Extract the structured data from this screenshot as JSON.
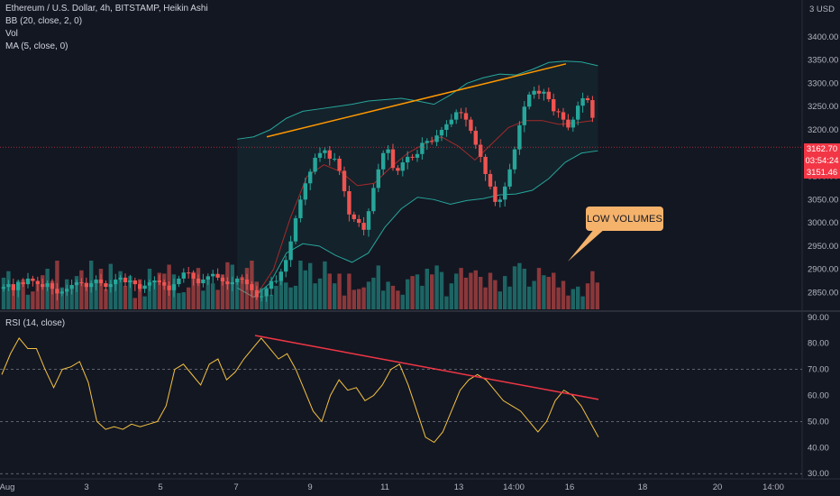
{
  "legend": {
    "main": "Ethereum / U.S. Dollar, 4h, BITSTAMP, Heikin Ashi",
    "bb": "BB (20, close, 2, 0)",
    "vol": "Vol",
    "ma": "MA (5, close, 0)",
    "rsi": "RSI (14, close)"
  },
  "currency_label": "3 USD",
  "callout_text": "LOW VOLUMES",
  "price_tags": {
    "last": "3162.70",
    "countdown": "03:54:24",
    "low": "3151.46"
  },
  "colors": {
    "bull": "#26a69a",
    "bear": "#ef5350",
    "bb": "#26a69a",
    "ma": "#a52a2a",
    "trend_upper": "#ff9800",
    "trend_rsi": "#f23645",
    "rsi": "#f5c242",
    "bg": "#131722"
  },
  "chart_data": [
    {
      "type": "candlestick",
      "title": "Ethereum / U.S. Dollar, 4h, BITSTAMP, Heikin Ashi",
      "y_ticks": [
        3400,
        3350,
        3300,
        3250,
        3200,
        3150,
        3100,
        3050,
        3000,
        2950,
        2900,
        2850
      ],
      "ylim": [
        2810,
        3460
      ],
      "x_ticks": [
        "Aug",
        "3",
        "5",
        "7",
        "9",
        "11",
        "13",
        "14:00",
        "16",
        "18",
        "20",
        "14:00"
      ],
      "closes": [
        2862,
        2868,
        2855,
        2872,
        2868,
        2880,
        2875,
        2868,
        2862,
        2870,
        2858,
        2848,
        2852,
        2858,
        2866,
        2872,
        2870,
        2862,
        2870,
        2878,
        2870,
        2862,
        2868,
        2878,
        2882,
        2872,
        2876,
        2868,
        2858,
        2865,
        2872,
        2876,
        2872,
        2865,
        2855,
        2868,
        2880,
        2893,
        2892,
        2880,
        2870,
        2878,
        2885,
        2890,
        2882,
        2874,
        2868,
        2872,
        2880,
        2878,
        2868,
        2855,
        2840,
        2842,
        2858,
        2875,
        2875,
        2895,
        2920,
        2960,
        3010,
        3050,
        3085,
        3110,
        3140,
        3150,
        3156,
        3138,
        3138,
        3112,
        3068,
        3018,
        3008,
        3000,
        2985,
        3025,
        3075,
        3115,
        3150,
        3158,
        3118,
        3112,
        3130,
        3142,
        3140,
        3148,
        3172,
        3176,
        3174,
        3188,
        3200,
        3212,
        3222,
        3238,
        3236,
        3222,
        3198,
        3168,
        3142,
        3105,
        3078,
        3045,
        3050,
        3078,
        3115,
        3158,
        3210,
        3250,
        3276,
        3284,
        3278,
        3282,
        3266,
        3240,
        3238,
        3222,
        3205,
        3222,
        3252,
        3268,
        3264,
        3226
      ],
      "bb_upper": [
        3180,
        3185,
        3200,
        3225,
        3240,
        3245,
        3250,
        3255,
        3262,
        3265,
        3268,
        3262,
        3255,
        3275,
        3300,
        3312,
        3320,
        3318,
        3330,
        3345,
        3348,
        3346,
        3338
      ],
      "bb_lower": [
        2860,
        2840,
        2870,
        2935,
        2955,
        2950,
        2930,
        2915,
        2935,
        2990,
        3030,
        3055,
        3050,
        3040,
        3048,
        3052,
        3060,
        3062,
        3070,
        3095,
        3130,
        3150,
        3155
      ],
      "ma": [
        2845,
        2900,
        3010,
        3100,
        3125,
        3110,
        3080,
        3085,
        3120,
        3150,
        3170,
        3185,
        3165,
        3135,
        3170,
        3205,
        3220,
        3220,
        3212,
        3215,
        3220
      ]
    },
    {
      "type": "bar",
      "title": "Vol",
      "values_relative": [
        0.39,
        0.47,
        0.26,
        0.35,
        0.37,
        0.18,
        0.22,
        0.31,
        0.42,
        0.5,
        0.35,
        0.6,
        0.27,
        0.37,
        0.3,
        0.41,
        0.48,
        0.33,
        0.6,
        0.34,
        0.5,
        0.25,
        0.56,
        0.32,
        0.47,
        0.29,
        0.41,
        0.14,
        0.37,
        0.16,
        0.5,
        0.34,
        0.45,
        0.44,
        0.55,
        0.43,
        0.2,
        0.21,
        0.27,
        0.46,
        0.51,
        0.23,
        0.39,
        0.32,
        0.24,
        0.43,
        0.58,
        0.55,
        0.38,
        0.4,
        0.51,
        0.6,
        0.34,
        0.26,
        0.27,
        0.18,
        0.29,
        0.44,
        0.33,
        0.27,
        0.29,
        0.6,
        0.48,
        0.57,
        0.32,
        0.38,
        0.59,
        0.44,
        0.32,
        0.44,
        0.17,
        0.44,
        0.24,
        0.25,
        0.27,
        0.34,
        0.39,
        0.54,
        0.23,
        0.34,
        0.29,
        0.23,
        0.18,
        0.37,
        0.41,
        0.43,
        0.29,
        0.5,
        0.43,
        0.54,
        0.46,
        0.16,
        0.32,
        0.44,
        0.51,
        0.39,
        0.45,
        0.48,
        0.4,
        0.27,
        0.45,
        0.36,
        0.22,
        0.41,
        0.28,
        0.53,
        0.57,
        0.5,
        0.28,
        0.35,
        0.51,
        0.42,
        0.4,
        0.45,
        0.27,
        0.35,
        0.17,
        0.25,
        0.28,
        0.16,
        0.32,
        0.47,
        0.33
      ]
    },
    {
      "type": "line",
      "title": "RSI (14, close)",
      "y_ticks": [
        90,
        80,
        70,
        60,
        50,
        40,
        30
      ],
      "ylim": [
        28,
        92
      ],
      "levels": [
        70,
        50,
        30
      ],
      "values": [
        68,
        76,
        82,
        78,
        78,
        70,
        63,
        70,
        71,
        73,
        65,
        50,
        47,
        48,
        47,
        49,
        48,
        49,
        50,
        56,
        70,
        72,
        68,
        64,
        72,
        74,
        66,
        69,
        74,
        78,
        82,
        78,
        74,
        76,
        70,
        62,
        54,
        50,
        60,
        66,
        62,
        63,
        58,
        60,
        64,
        70,
        72,
        64,
        54,
        44,
        42,
        46,
        54,
        62,
        66,
        68,
        66,
        62,
        58,
        56,
        54,
        50,
        46,
        50,
        58,
        62,
        60,
        56,
        50,
        44
      ]
    }
  ]
}
